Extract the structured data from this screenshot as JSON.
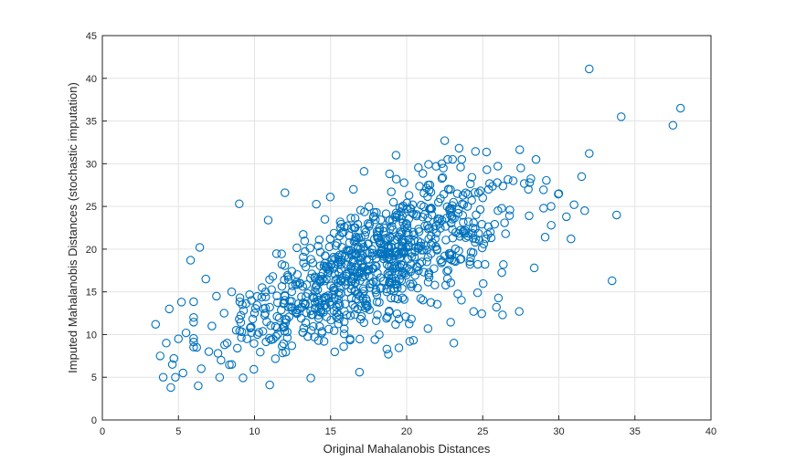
{
  "chart_data": {
    "type": "scatter",
    "xlabel": "Original Mahalanobis Distances",
    "ylabel": "Imputed Mahalanobis Distances (stochastic imputation)",
    "xlim": [
      0,
      40
    ],
    "ylim": [
      0,
      45
    ],
    "xticks": [
      0,
      5,
      10,
      15,
      20,
      25,
      30,
      35,
      40
    ],
    "yticks": [
      0,
      5,
      10,
      15,
      20,
      25,
      30,
      35,
      40,
      45
    ],
    "grid": true,
    "marker": "open-circle",
    "marker_color": "#0072BD",
    "x": [
      3.5,
      3.8,
      4.0,
      4.2,
      4.4,
      4.5,
      4.6,
      4.7,
      5.0,
      5.2,
      5.3,
      5.5,
      5.8,
      6.0,
      6.2,
      6.4,
      6.5,
      6.8,
      7.0,
      7.2,
      7.5,
      7.8,
      8.0,
      8.2,
      8.5,
      8.8,
      9.0,
      9.2,
      9.5,
      9.8,
      10.0,
      10.2,
      10.5,
      10.8,
      11.0,
      11.2,
      11.5,
      11.8,
      12.0,
      12.5,
      13.0,
      13.5,
      14.0,
      14.5,
      15.0,
      15.5,
      16.0,
      16.5,
      17.0,
      17.5,
      18.0,
      18.5,
      19.0,
      19.5,
      20.0,
      20.5,
      21.0,
      21.5,
      22.0,
      22.5,
      23.0,
      23.5,
      24.0,
      24.5,
      25.0,
      25.5,
      26.0,
      26.5,
      27.0,
      27.5,
      28.0,
      28.5,
      29.0,
      29.5,
      30.0,
      30.5,
      31.0,
      31.5,
      32.0,
      33.5,
      33.8,
      34.1,
      37.5,
      38.0,
      9.0,
      10.9,
      12.0,
      16.5,
      17.2,
      19.3,
      22.5,
      22.7,
      4.8,
      6.3,
      7.6,
      13.7,
      16.9,
      15.9,
      18.7,
      20.2,
      21.4,
      23.1,
      24.4,
      25.9,
      26.3,
      27.4,
      29.1,
      30.8,
      31.7,
      32.0,
      11.0,
      8.5,
      14.2,
      18.2
    ],
    "y": [
      11.2,
      7.5,
      5.0,
      9.0,
      13.0,
      3.8,
      6.5,
      7.2,
      9.5,
      13.8,
      5.5,
      10.2,
      18.7,
      12.0,
      8.5,
      20.2,
      6.0,
      16.5,
      8.0,
      11.0,
      14.5,
      7.0,
      12.5,
      9.0,
      15.0,
      10.5,
      11.8,
      13.5,
      9.5,
      14.0,
      12.5,
      10.0,
      15.5,
      11.5,
      13.2,
      16.8,
      10.8,
      18.2,
      14.5,
      12.8,
      16.0,
      14.8,
      15.5,
      17.2,
      13.5,
      18.5,
      15.8,
      16.5,
      19.0,
      17.5,
      16.2,
      20.5,
      18.0,
      19.5,
      17.8,
      21.0,
      18.5,
      22.5,
      20.0,
      19.2,
      23.5,
      21.5,
      25.0,
      20.8,
      26.0,
      22.0,
      24.5,
      21.8,
      28.0,
      29.5,
      27.0,
      30.5,
      24.8,
      22.8,
      26.5,
      23.8,
      25.2,
      28.5,
      31.2,
      16.3,
      24.0,
      35.5,
      34.5,
      36.5,
      25.3,
      23.4,
      26.6,
      27.0,
      29.1,
      31.0,
      32.7,
      30.5,
      5.0,
      4.0,
      7.8,
      4.9,
      5.6,
      11.5,
      8.3,
      9.2,
      10.7,
      9.0,
      12.7,
      13.2,
      12.3,
      12.7,
      21.4,
      21.2,
      24.5,
      41.1,
      4.1,
      6.5,
      9.3,
      10.0
    ]
  }
}
